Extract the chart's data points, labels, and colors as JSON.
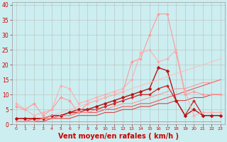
{
  "background_color": "#cceef0",
  "grid_color": "#bbbbbb",
  "xlabel": "Vent moyen/en rafales ( km/h )",
  "xlabel_color": "#cc0000",
  "xlabel_fontsize": 7,
  "tick_color": "#cc0000",
  "xlim": [
    -0.5,
    23.5
  ],
  "ylim": [
    0,
    41
  ],
  "yticks": [
    0,
    5,
    10,
    15,
    20,
    25,
    30,
    35,
    40
  ],
  "xticks": [
    0,
    1,
    2,
    3,
    4,
    5,
    6,
    7,
    8,
    9,
    10,
    11,
    12,
    13,
    14,
    15,
    16,
    17,
    18,
    19,
    20,
    21,
    22,
    23
  ],
  "lines": [
    {
      "x": [
        0,
        1,
        2,
        3,
        4,
        5,
        6,
        7,
        8,
        9,
        10,
        11,
        12,
        13,
        14,
        15,
        16,
        17,
        18,
        19,
        20,
        21,
        22,
        23
      ],
      "y": [
        1,
        1,
        1,
        1,
        1,
        1,
        1,
        1,
        1,
        1,
        1,
        1,
        1,
        1,
        1,
        1,
        1,
        1,
        1,
        1,
        1,
        1,
        1,
        1
      ],
      "color": "#ee6666",
      "linewidth": 0.7,
      "marker": null,
      "alpha": 0.7
    },
    {
      "x": [
        0,
        1,
        2,
        3,
        4,
        5,
        6,
        7,
        8,
        9,
        10,
        11,
        12,
        13,
        14,
        15,
        16,
        17,
        18,
        19,
        20,
        21,
        22,
        23
      ],
      "y": [
        1,
        1,
        1,
        1,
        2,
        2,
        2,
        3,
        3,
        3,
        4,
        4,
        5,
        5,
        6,
        6,
        7,
        7,
        8,
        8,
        9,
        9,
        10,
        10
      ],
      "color": "#dd4444",
      "linewidth": 0.8,
      "marker": null,
      "alpha": 1.0
    },
    {
      "x": [
        0,
        1,
        2,
        3,
        4,
        5,
        6,
        7,
        8,
        9,
        10,
        11,
        12,
        13,
        14,
        15,
        16,
        17,
        18,
        19,
        20,
        21,
        22,
        23
      ],
      "y": [
        1,
        1,
        2,
        2,
        2,
        3,
        3,
        4,
        4,
        4,
        5,
        5,
        6,
        6,
        7,
        7,
        8,
        9,
        10,
        11,
        12,
        13,
        14,
        15
      ],
      "color": "#ee5555",
      "linewidth": 0.8,
      "marker": null,
      "alpha": 1.0
    },
    {
      "x": [
        0,
        1,
        2,
        3,
        4,
        5,
        6,
        7,
        8,
        9,
        10,
        11,
        12,
        13,
        14,
        15,
        16,
        17,
        18,
        19,
        20,
        21,
        22,
        23
      ],
      "y": [
        2,
        2,
        2,
        2,
        3,
        3,
        4,
        4,
        5,
        5,
        6,
        7,
        8,
        9,
        10,
        10,
        12,
        13,
        8,
        3,
        8,
        3,
        3,
        3
      ],
      "color": "#cc2222",
      "linewidth": 0.9,
      "marker": "D",
      "markersize": 2,
      "alpha": 1.0
    },
    {
      "x": [
        0,
        1,
        2,
        3,
        4,
        5,
        6,
        7,
        8,
        9,
        10,
        11,
        12,
        13,
        14,
        15,
        16,
        17,
        18,
        19,
        20,
        21,
        22,
        23
      ],
      "y": [
        2,
        2,
        2,
        2,
        3,
        3,
        4,
        5,
        5,
        6,
        7,
        8,
        9,
        10,
        11,
        12,
        19,
        18,
        8,
        3,
        5,
        3,
        3,
        3
      ],
      "color": "#bb1111",
      "linewidth": 1.0,
      "marker": "D",
      "markersize": 2.5,
      "alpha": 1.0
    },
    {
      "x": [
        0,
        1,
        2,
        3,
        4,
        5,
        6,
        7,
        8,
        9,
        10,
        11,
        12,
        13,
        14,
        15,
        16,
        17,
        18,
        19,
        20,
        21,
        22,
        23
      ],
      "y": [
        6,
        5,
        7,
        3,
        5,
        9,
        8,
        4,
        7,
        8,
        9,
        10,
        11,
        21,
        22,
        30,
        37,
        37,
        24,
        10,
        11,
        10,
        10,
        10
      ],
      "color": "#ff9999",
      "linewidth": 0.8,
      "marker": "D",
      "markersize": 2,
      "alpha": 1.0
    },
    {
      "x": [
        0,
        1,
        2,
        3,
        4,
        5,
        6,
        7,
        8,
        9,
        10,
        11,
        12,
        13,
        14,
        15,
        16,
        17,
        18,
        19,
        20,
        21,
        22,
        23
      ],
      "y": [
        7,
        5,
        3,
        4,
        5,
        13,
        12,
        7,
        8,
        9,
        10,
        11,
        12,
        15,
        24,
        25,
        21,
        22,
        25,
        11,
        3,
        4,
        4,
        4
      ],
      "color": "#ffaaaa",
      "linewidth": 0.8,
      "marker": "D",
      "markersize": 2,
      "alpha": 0.9
    },
    {
      "x": [
        0,
        1,
        2,
        3,
        4,
        5,
        6,
        7,
        8,
        9,
        10,
        11,
        12,
        13,
        14,
        15,
        16,
        17,
        18,
        19,
        20,
        21,
        22,
        23
      ],
      "y": [
        1,
        1,
        1,
        2,
        3,
        4,
        5,
        6,
        7,
        8,
        9,
        10,
        11,
        12,
        13,
        14,
        15,
        16,
        17,
        18,
        19,
        20,
        21,
        22
      ],
      "color": "#ffbbbb",
      "linewidth": 0.8,
      "marker": null,
      "alpha": 0.9
    },
    {
      "x": [
        0,
        1,
        2,
        3,
        4,
        5,
        6,
        7,
        8,
        9,
        10,
        11,
        12,
        13,
        14,
        15,
        16,
        17,
        18,
        19,
        20,
        21,
        22,
        23
      ],
      "y": [
        1,
        1,
        1,
        2,
        2,
        3,
        3,
        4,
        4,
        5,
        5,
        6,
        7,
        7,
        8,
        9,
        10,
        11,
        12,
        12,
        13,
        14,
        14,
        15
      ],
      "color": "#ff8888",
      "linewidth": 0.8,
      "marker": null,
      "alpha": 0.8
    }
  ]
}
